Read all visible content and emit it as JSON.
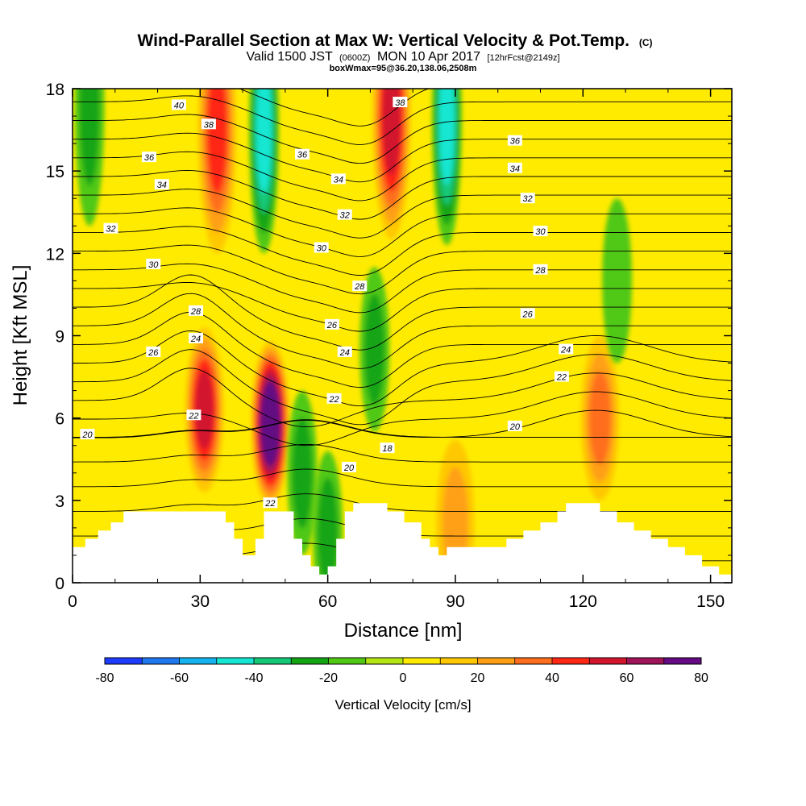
{
  "title": {
    "main": "Wind-Parallel Section at Max W: Vertical Velocity & Pot.Temp.",
    "copyright": "(C)",
    "valid_prefix": "Valid 1500 JST",
    "valid_utc": "(0600Z)",
    "valid_date": "MON 10 Apr 2017",
    "forecast": "[12hrFcst@2149z]",
    "box": "boxWmax=95@36.20,138.06,2508m"
  },
  "chart_data": {
    "type": "heatmap",
    "xlabel": "Distance [nm]",
    "ylabel": "Height [Kft MSL]",
    "xlim": [
      0,
      155
    ],
    "ylim": [
      0,
      18
    ],
    "x_ticks": [
      "0",
      "30",
      "60",
      "90",
      "120",
      "150"
    ],
    "x_tick_values": [
      0,
      30,
      60,
      90,
      120,
      150
    ],
    "y_ticks": [
      "0",
      "3",
      "6",
      "9",
      "12",
      "15",
      "18"
    ],
    "y_tick_values": [
      0,
      3,
      6,
      9,
      12,
      15,
      18
    ],
    "colorbar": {
      "label": "Vertical Velocity [cm/s]",
      "ticks": [
        "-80",
        "-60",
        "-40",
        "-20",
        "0",
        "20",
        "40",
        "60",
        "80"
      ],
      "levels": [
        -80,
        -70,
        -60,
        -50,
        -40,
        -30,
        -20,
        -10,
        0,
        10,
        20,
        30,
        40,
        50,
        60,
        70,
        80
      ],
      "colors": [
        "#1e3cff",
        "#1e78f0",
        "#14b4f0",
        "#14e6d2",
        "#14c878",
        "#14a514",
        "#50c814",
        "#b4e614",
        "#ffeb00",
        "#ffc800",
        "#ffa014",
        "#ff6e1e",
        "#ff2814",
        "#d2142d",
        "#a0145a",
        "#640a82"
      ]
    },
    "theta_contours": {
      "units": "K",
      "levels": [
        16,
        17,
        18,
        19,
        20,
        21,
        22,
        23,
        24,
        25,
        26,
        27,
        28,
        29,
        30,
        31,
        32,
        33,
        34,
        35,
        36,
        37,
        38,
        39,
        40,
        41
      ],
      "labels": [
        {
          "text": "40",
          "x": 25,
          "y": 17.4
        },
        {
          "text": "38",
          "x": 32,
          "y": 16.7
        },
        {
          "text": "36",
          "x": 18,
          "y": 15.5
        },
        {
          "text": "34",
          "x": 21,
          "y": 14.5
        },
        {
          "text": "32",
          "x": 9,
          "y": 12.9
        },
        {
          "text": "30",
          "x": 19,
          "y": 11.6
        },
        {
          "text": "28",
          "x": 29,
          "y": 9.9
        },
        {
          "text": "24",
          "x": 29,
          "y": 8.9
        },
        {
          "text": "26",
          "x": 19,
          "y": 8.4
        },
        {
          "text": "22",
          "x": 28.5,
          "y": 6.1
        },
        {
          "text": "20",
          "x": 3.5,
          "y": 5.4
        },
        {
          "text": "22",
          "x": 46.5,
          "y": 2.9
        },
        {
          "text": "36",
          "x": 54,
          "y": 15.6
        },
        {
          "text": "34",
          "x": 62.5,
          "y": 14.7
        },
        {
          "text": "32",
          "x": 64,
          "y": 13.4
        },
        {
          "text": "30",
          "x": 58.5,
          "y": 12.2
        },
        {
          "text": "28",
          "x": 67.5,
          "y": 10.8
        },
        {
          "text": "26",
          "x": 61,
          "y": 9.4
        },
        {
          "text": "24",
          "x": 64,
          "y": 8.4
        },
        {
          "text": "22",
          "x": 61.5,
          "y": 6.7
        },
        {
          "text": "20",
          "x": 65,
          "y": 4.2
        },
        {
          "text": "18",
          "x": 74,
          "y": 4.9
        },
        {
          "text": "38",
          "x": 77,
          "y": 17.5
        },
        {
          "text": "36",
          "x": 104,
          "y": 16.1
        },
        {
          "text": "34",
          "x": 104,
          "y": 15.1
        },
        {
          "text": "32",
          "x": 107,
          "y": 14.0
        },
        {
          "text": "30",
          "x": 110,
          "y": 12.8
        },
        {
          "text": "28",
          "x": 110,
          "y": 11.4
        },
        {
          "text": "26",
          "x": 107,
          "y": 9.8
        },
        {
          "text": "24",
          "x": 116,
          "y": 8.5
        },
        {
          "text": "22",
          "x": 115,
          "y": 7.5
        },
        {
          "text": "20",
          "x": 104,
          "y": 5.7
        }
      ]
    },
    "vertical_velocity_features": [
      {
        "kind": "updraft",
        "x": 46.5,
        "y": 5.8,
        "peak": 80
      },
      {
        "kind": "updraft",
        "x": 31,
        "y": 6.3,
        "peak": 55
      },
      {
        "kind": "updraft",
        "x": 34,
        "y": 16.5,
        "peak": 45
      },
      {
        "kind": "updraft",
        "x": 75,
        "y": 17,
        "peak": 55
      },
      {
        "kind": "updraft",
        "x": 124,
        "y": 6.0,
        "peak": 30
      },
      {
        "kind": "updraft",
        "x": 90,
        "y": 2.2,
        "peak": 25
      },
      {
        "kind": "downdraft",
        "x": 45,
        "y": 16.5,
        "peak": -45
      },
      {
        "kind": "downdraft",
        "x": 88,
        "y": 16.8,
        "peak": -40
      },
      {
        "kind": "downdraft",
        "x": 54,
        "y": 4.0,
        "peak": -20
      },
      {
        "kind": "downdraft",
        "x": 71,
        "y": 8.5,
        "peak": -20
      },
      {
        "kind": "downdraft",
        "x": 60,
        "y": 1.8,
        "peak": -25
      },
      {
        "kind": "downdraft",
        "x": 4,
        "y": 17.5,
        "peak": -20
      },
      {
        "kind": "downdraft",
        "x": 128,
        "y": 11,
        "peak": -15
      }
    ],
    "terrain": [
      [
        0,
        1.3
      ],
      [
        3,
        1.6
      ],
      [
        6,
        1.9
      ],
      [
        9,
        2.2
      ],
      [
        12,
        2.6
      ],
      [
        24,
        2.6
      ],
      [
        34,
        2.6
      ],
      [
        36,
        2.2
      ],
      [
        38,
        1.6
      ],
      [
        40,
        1.0
      ],
      [
        43,
        1.6
      ],
      [
        45,
        2.6
      ],
      [
        50,
        2.6
      ],
      [
        52,
        1.6
      ],
      [
        54,
        1.0
      ],
      [
        56,
        0.6
      ],
      [
        58,
        0.3
      ],
      [
        60,
        0.6
      ],
      [
        62,
        1.6
      ],
      [
        64,
        2.6
      ],
      [
        66,
        2.9
      ],
      [
        70,
        2.9
      ],
      [
        74,
        2.6
      ],
      [
        78,
        2.2
      ],
      [
        82,
        1.6
      ],
      [
        84,
        1.3
      ],
      [
        86,
        1.0
      ],
      [
        88,
        1.3
      ],
      [
        100,
        1.3
      ],
      [
        102,
        1.6
      ],
      [
        106,
        1.9
      ],
      [
        110,
        2.2
      ],
      [
        114,
        2.6
      ],
      [
        116,
        2.9
      ],
      [
        122,
        2.9
      ],
      [
        124,
        2.6
      ],
      [
        128,
        2.2
      ],
      [
        132,
        1.9
      ],
      [
        136,
        1.6
      ],
      [
        140,
        1.3
      ],
      [
        144,
        1.0
      ],
      [
        148,
        0.6
      ],
      [
        150,
        0.6
      ],
      [
        152,
        0.3
      ],
      [
        155,
        0.3
      ]
    ]
  }
}
